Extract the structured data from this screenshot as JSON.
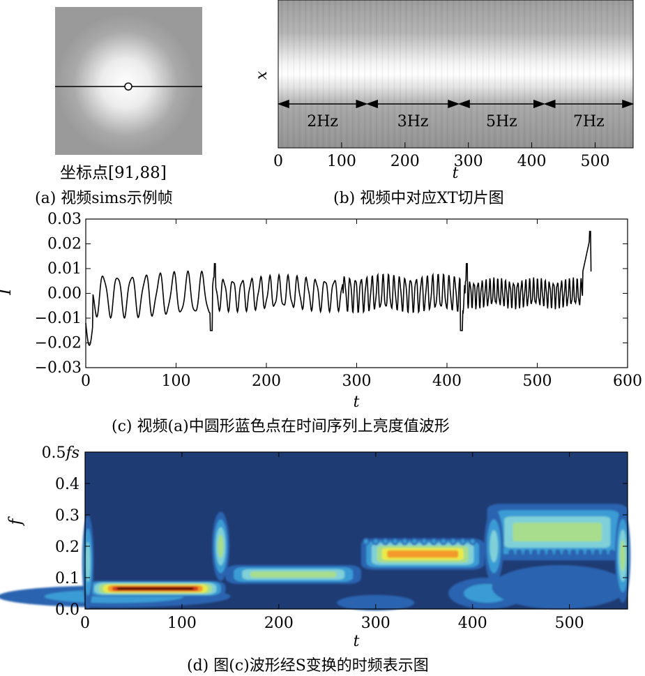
{
  "colors": {
    "line": "#000000",
    "contour_bg": "#1f3b73"
  },
  "panel_a": {
    "coord_label": "坐标点[91,88]",
    "caption": "(a) 视频sims示例帧"
  },
  "panel_b": {
    "caption": "(b) 视频中对应XT切片图",
    "ylabel": "x",
    "xlabel": "t",
    "xticks": [
      "0",
      "100",
      "200",
      "300",
      "400",
      "500"
    ],
    "segments": [
      "2Hz",
      "3Hz",
      "5Hz",
      "7Hz"
    ]
  },
  "panel_c": {
    "caption": "(c) 视频(a)中圆形蓝色点在时间序列上亮度值波形",
    "ylabel": "I",
    "xlabel": "t",
    "xticks": [
      "0",
      "100",
      "200",
      "300",
      "400",
      "500",
      "600"
    ],
    "yticks": [
      "0.03",
      "0.02",
      "0.01",
      "0.00",
      "−0.01",
      "−0.02",
      "−0.03"
    ]
  },
  "panel_d": {
    "caption": "(d) 图(c)波形经S变换的时频表示图",
    "ylabel": "f",
    "xlabel": "t",
    "xticks": [
      "0",
      "100",
      "200",
      "300",
      "400",
      "500"
    ],
    "yticks_plain": [
      "0.4",
      "0.3",
      "0.2",
      "0.1",
      "0.0"
    ],
    "ytick_top_prefix": "0.5",
    "ytick_top_suffix": "fs"
  },
  "chart_data": [
    {
      "type": "line",
      "title": "",
      "xlabel": "t",
      "ylabel": "I",
      "xlim": [
        0,
        600
      ],
      "ylim": [
        -0.03,
        0.03
      ],
      "grid": false,
      "segments": [
        {
          "t_start": 0,
          "t_end": 140,
          "freq_hz": 2,
          "period_samples": 15.6,
          "amplitude": 0.008
        },
        {
          "t_start": 140,
          "t_end": 285,
          "freq_hz": 3,
          "period_samples": 10.2,
          "amplitude": 0.006
        },
        {
          "t_start": 285,
          "t_end": 420,
          "freq_hz": 5,
          "period_samples": 6.1,
          "amplitude": 0.0065
        },
        {
          "t_start": 420,
          "t_end": 550,
          "freq_hz": 7,
          "period_samples": 4.4,
          "amplitude": 0.005
        }
      ],
      "events": [
        {
          "t": 2,
          "value": -0.021
        },
        {
          "t": 139,
          "value": -0.015
        },
        {
          "t": 143,
          "value": 0.012
        },
        {
          "t": 416,
          "value": -0.015
        },
        {
          "t": 422,
          "value": 0.012
        },
        {
          "t": 560,
          "value": 0.025
        }
      ]
    },
    {
      "type": "heatmap",
      "title": "",
      "xlabel": "t",
      "ylabel": "f",
      "xlim": [
        0,
        560
      ],
      "ylim": [
        0,
        0.5
      ],
      "bands": [
        {
          "t_start": 0,
          "t_end": 140,
          "f_center": 0.065,
          "peak": 1.0
        },
        {
          "t_start": 140,
          "t_end": 285,
          "f_center": 0.11,
          "peak": 0.4
        },
        {
          "t_start": 285,
          "t_end": 410,
          "f_center": 0.175,
          "peak": 0.75
        },
        {
          "t_start": 420,
          "t_end": 560,
          "f_center": 0.23,
          "peak": 0.55
        }
      ]
    }
  ]
}
